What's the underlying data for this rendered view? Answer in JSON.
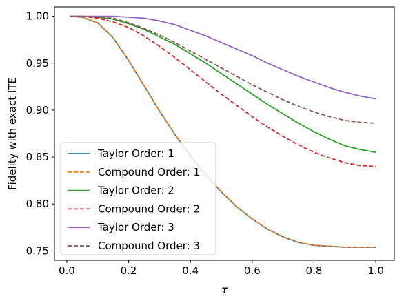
{
  "chart_data": {
    "type": "line",
    "xlabel": "τ",
    "ylabel": "Fidelity with exact ITE",
    "xlim": [
      -0.04,
      1.06
    ],
    "ylim": [
      0.74,
      1.01
    ],
    "x_ticks": [
      0.0,
      0.2,
      0.4,
      0.6,
      0.8,
      1.0
    ],
    "x_tick_labels": [
      "0.0",
      "0.2",
      "0.4",
      "0.6",
      "0.8",
      "1.0"
    ],
    "y_ticks": [
      0.75,
      0.8,
      0.85,
      0.9,
      0.95,
      1.0
    ],
    "y_tick_labels": [
      "0.75",
      "0.80",
      "0.85",
      "0.90",
      "0.95",
      "1.00"
    ],
    "grid": false,
    "legend_position": "lower-left",
    "x": [
      0.01,
      0.05,
      0.1,
      0.15,
      0.2,
      0.25,
      0.3,
      0.35,
      0.4,
      0.45,
      0.5,
      0.55,
      0.6,
      0.65,
      0.7,
      0.75,
      0.8,
      0.85,
      0.9,
      0.95,
      1.0
    ],
    "series": [
      {
        "name": "Taylor Order: 1",
        "color": "#1f77b4",
        "dash": "solid",
        "values": [
          1.0,
          0.999,
          0.993,
          0.977,
          0.953,
          0.926,
          0.899,
          0.874,
          0.851,
          0.831,
          0.813,
          0.797,
          0.784,
          0.773,
          0.765,
          0.759,
          0.756,
          0.755,
          0.754,
          0.754,
          0.754
        ]
      },
      {
        "name": "Compound Order: 1",
        "color": "#ff7f0e",
        "dash": "dashed",
        "values": [
          1.0,
          0.999,
          0.993,
          0.977,
          0.953,
          0.926,
          0.899,
          0.874,
          0.851,
          0.831,
          0.813,
          0.797,
          0.784,
          0.773,
          0.765,
          0.759,
          0.756,
          0.755,
          0.754,
          0.754,
          0.754
        ]
      },
      {
        "name": "Taylor Order: 2",
        "color": "#2ca02c",
        "dash": "solid",
        "values": [
          1.0,
          1.0,
          0.999,
          0.997,
          0.992,
          0.986,
          0.978,
          0.97,
          0.96,
          0.95,
          0.939,
          0.928,
          0.917,
          0.906,
          0.896,
          0.886,
          0.877,
          0.869,
          0.862,
          0.858,
          0.855
        ]
      },
      {
        "name": "Compound Order: 2",
        "color": "#d62728",
        "dash": "dashed",
        "values": [
          1.0,
          1.0,
          0.998,
          0.994,
          0.988,
          0.979,
          0.968,
          0.956,
          0.943,
          0.93,
          0.917,
          0.905,
          0.893,
          0.882,
          0.872,
          0.863,
          0.855,
          0.849,
          0.844,
          0.841,
          0.84
        ]
      },
      {
        "name": "Taylor Order: 3",
        "color": "#9467bd",
        "dash": "solid",
        "values": [
          1.0,
          1.0,
          1.0,
          1.0,
          0.999,
          0.998,
          0.995,
          0.991,
          0.985,
          0.979,
          0.972,
          0.965,
          0.958,
          0.95,
          0.943,
          0.936,
          0.93,
          0.924,
          0.919,
          0.915,
          0.912
        ]
      },
      {
        "name": "Compound Order: 3",
        "color": "#8c564b",
        "dash": "dashed",
        "values": [
          1.0,
          1.0,
          0.999,
          0.998,
          0.993,
          0.987,
          0.98,
          0.972,
          0.963,
          0.954,
          0.945,
          0.936,
          0.927,
          0.919,
          0.911,
          0.904,
          0.898,
          0.893,
          0.889,
          0.887,
          0.886
        ]
      }
    ]
  }
}
